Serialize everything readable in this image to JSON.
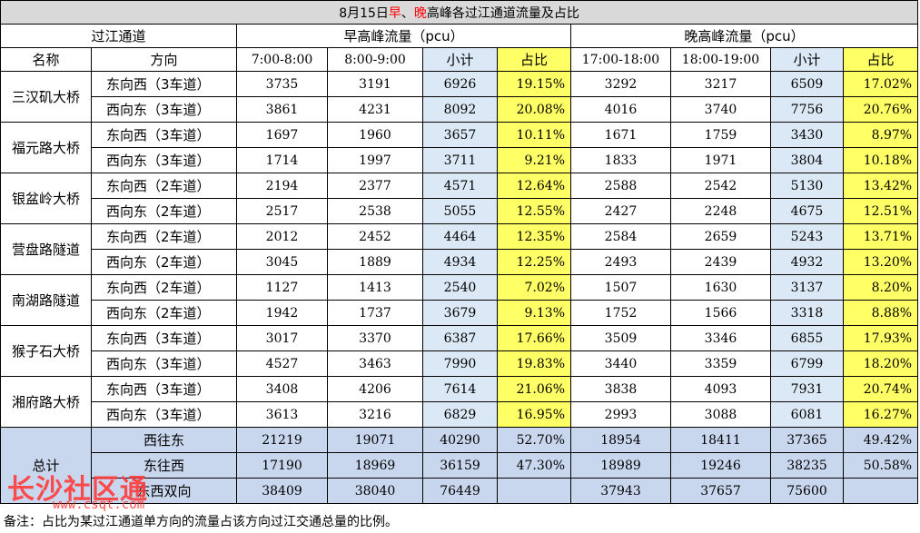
{
  "title": {
    "prefix": "8月15日",
    "early": "早",
    "sep": "、",
    "late": "晚",
    "suffix": "高峰各过江通道流量及占比"
  },
  "headers": {
    "channel": "过江通道",
    "morning": "早高峰流量（pcu）",
    "evening": "晚高峰流量（pcu）",
    "name": "名称",
    "direction": "方向",
    "m1": "7:00-8:00",
    "m2": "8:00-9:00",
    "subtotal": "小计",
    "ratio": "占比",
    "e1": "17:00-18:00",
    "e2": "18:00-19:00"
  },
  "rows": [
    {
      "name": "三汉矶大桥",
      "dirs": [
        {
          "dir": "东向西（3车道）",
          "v": [
            "3735",
            "3191",
            "6926",
            "19.15%",
            "3292",
            "3217",
            "6509",
            "17.02%"
          ]
        },
        {
          "dir": "西向东（3车道）",
          "v": [
            "3861",
            "4231",
            "8092",
            "20.08%",
            "4016",
            "3740",
            "7756",
            "20.76%"
          ]
        }
      ]
    },
    {
      "name": "福元路大桥",
      "dirs": [
        {
          "dir": "东向西（3车道）",
          "v": [
            "1697",
            "1960",
            "3657",
            "10.11%",
            "1671",
            "1759",
            "3430",
            "8.97%"
          ]
        },
        {
          "dir": "西向东（3车道）",
          "v": [
            "1714",
            "1997",
            "3711",
            "9.21%",
            "1833",
            "1971",
            "3804",
            "10.18%"
          ]
        }
      ]
    },
    {
      "name": "银盆岭大桥",
      "dirs": [
        {
          "dir": "东向西（2车道）",
          "v": [
            "2194",
            "2377",
            "4571",
            "12.64%",
            "2588",
            "2542",
            "5130",
            "13.42%"
          ]
        },
        {
          "dir": "西向东（2车道）",
          "v": [
            "2517",
            "2538",
            "5055",
            "12.55%",
            "2427",
            "2248",
            "4675",
            "12.51%"
          ]
        }
      ]
    },
    {
      "name": "营盘路隧道",
      "dirs": [
        {
          "dir": "东向西（2车道）",
          "v": [
            "2012",
            "2452",
            "4464",
            "12.35%",
            "2584",
            "2659",
            "5243",
            "13.71%"
          ]
        },
        {
          "dir": "西向东（2车道）",
          "v": [
            "3045",
            "1889",
            "4934",
            "12.25%",
            "2493",
            "2439",
            "4932",
            "13.20%"
          ]
        }
      ]
    },
    {
      "name": "南湖路隧道",
      "dirs": [
        {
          "dir": "东向西（2车道）",
          "v": [
            "1127",
            "1413",
            "2540",
            "7.02%",
            "1507",
            "1630",
            "3137",
            "8.20%"
          ]
        },
        {
          "dir": "西向东（2车道）",
          "v": [
            "1942",
            "1737",
            "3679",
            "9.13%",
            "1752",
            "1566",
            "3318",
            "8.88%"
          ]
        }
      ]
    },
    {
      "name": "猴子石大桥",
      "dirs": [
        {
          "dir": "东向西（3车道）",
          "v": [
            "3017",
            "3370",
            "6387",
            "17.66%",
            "3509",
            "3346",
            "6855",
            "17.93%"
          ]
        },
        {
          "dir": "西向东（3车道）",
          "v": [
            "4527",
            "3463",
            "7990",
            "19.83%",
            "3440",
            "3359",
            "6799",
            "18.20%"
          ]
        }
      ]
    },
    {
      "name": "湘府路大桥",
      "dirs": [
        {
          "dir": "东向西（3车道）",
          "v": [
            "3408",
            "4206",
            "7614",
            "21.06%",
            "3838",
            "4093",
            "7931",
            "20.74%"
          ]
        },
        {
          "dir": "西向东（3车道）",
          "v": [
            "3613",
            "3216",
            "6829",
            "16.95%",
            "2993",
            "3088",
            "6081",
            "16.27%"
          ]
        }
      ]
    }
  ],
  "total": {
    "label": "总计",
    "rows": [
      {
        "dir": "西往东",
        "v": [
          "21219",
          "19071",
          "40290",
          "52.70%",
          "18954",
          "18411",
          "37365",
          "49.42%"
        ]
      },
      {
        "dir": "东往西",
        "v": [
          "17190",
          "18969",
          "36159",
          "47.30%",
          "18989",
          "19246",
          "38235",
          "50.58%"
        ]
      },
      {
        "dir": "东西双向",
        "v": [
          "38409",
          "38040",
          "76449",
          "",
          "37943",
          "37657",
          "75600",
          ""
        ]
      }
    ]
  },
  "note": "备注：占比为某过江通道单方向的流量占该方向过江交通总量的比例。",
  "watermark": {
    "text": "长沙社区通",
    "url": "www.csqt.com"
  }
}
